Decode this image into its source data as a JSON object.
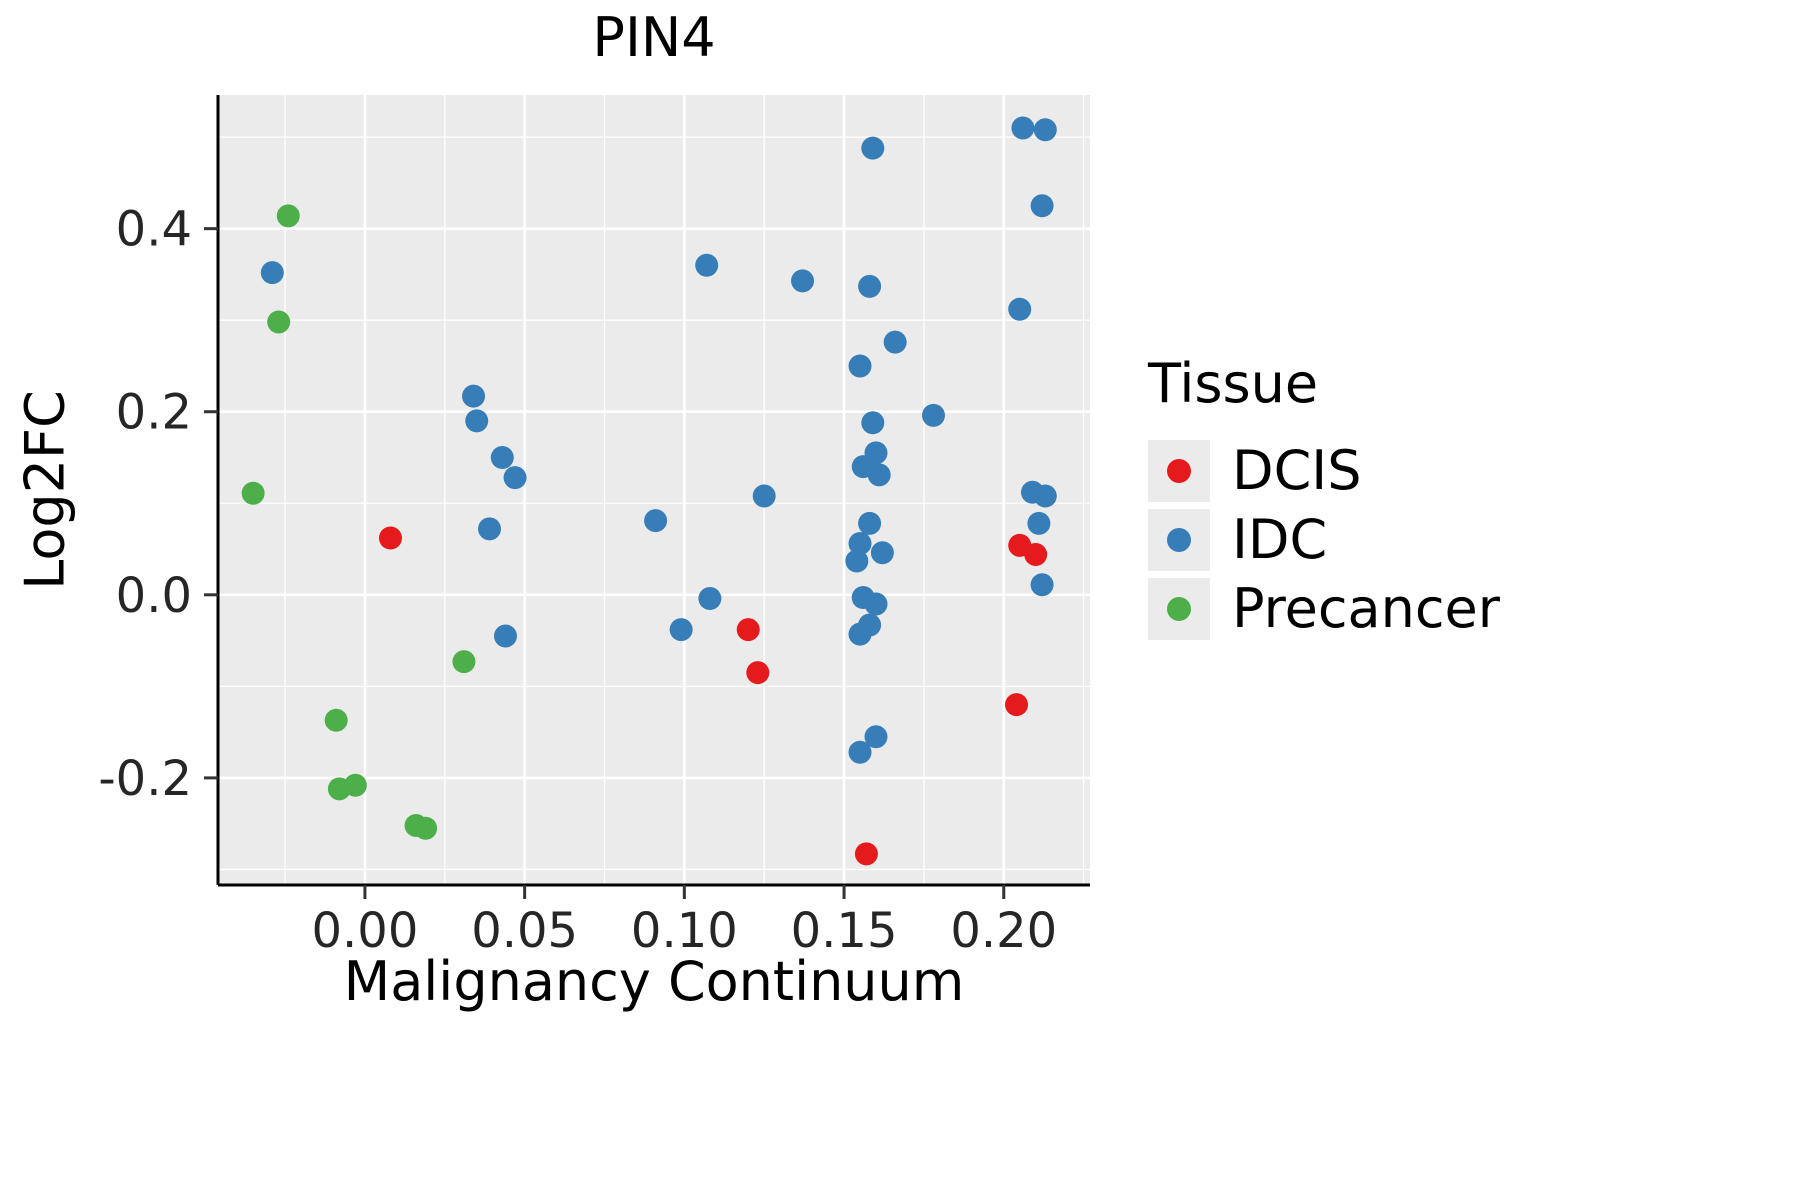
{
  "chart_data": {
    "type": "scatter",
    "title": "PIN4",
    "xlabel": "Malignancy Continuum",
    "ylabel": "Log2FC",
    "xlim": [
      -0.046,
      0.227
    ],
    "ylim": [
      -0.317,
      0.546
    ],
    "x_tick_values": [
      0.0,
      0.05,
      0.1,
      0.15,
      0.2
    ],
    "x_tick_labels": [
      "0.00",
      "0.05",
      "0.10",
      "0.15",
      "0.20"
    ],
    "y_tick_values": [
      -0.2,
      0.0,
      0.2,
      0.4
    ],
    "y_tick_labels": [
      "-0.2",
      "0.0",
      "0.2",
      "0.4"
    ],
    "legend_title": "Tissue",
    "panel_background": "#EBEBEB",
    "grid_color": "#FFFFFF",
    "legend_position": "right",
    "grid": true,
    "series": [
      {
        "name": "DCIS",
        "color": "#E41A1C",
        "points": [
          [
            0.008,
            0.062
          ],
          [
            0.12,
            -0.038
          ],
          [
            0.123,
            -0.085
          ],
          [
            0.157,
            -0.283
          ],
          [
            0.205,
            0.054
          ],
          [
            0.21,
            0.044
          ],
          [
            0.204,
            -0.12
          ]
        ]
      },
      {
        "name": "IDC",
        "color": "#377EB8",
        "points": [
          [
            -0.029,
            0.352
          ],
          [
            0.034,
            0.217
          ],
          [
            0.035,
            0.19
          ],
          [
            0.043,
            0.15
          ],
          [
            0.047,
            0.128
          ],
          [
            0.039,
            0.072
          ],
          [
            0.044,
            -0.045
          ],
          [
            0.091,
            0.081
          ],
          [
            0.107,
            0.36
          ],
          [
            0.108,
            -0.004
          ],
          [
            0.099,
            -0.038
          ],
          [
            0.125,
            0.108
          ],
          [
            0.137,
            0.343
          ],
          [
            0.159,
            0.488
          ],
          [
            0.158,
            0.337
          ],
          [
            0.155,
            0.25
          ],
          [
            0.159,
            0.188
          ],
          [
            0.16,
            0.155
          ],
          [
            0.156,
            0.14
          ],
          [
            0.161,
            0.131
          ],
          [
            0.158,
            0.078
          ],
          [
            0.155,
            0.056
          ],
          [
            0.162,
            0.046
          ],
          [
            0.154,
            0.037
          ],
          [
            0.156,
            -0.003
          ],
          [
            0.16,
            -0.01
          ],
          [
            0.158,
            -0.033
          ],
          [
            0.155,
            -0.043
          ],
          [
            0.16,
            -0.155
          ],
          [
            0.155,
            -0.172
          ],
          [
            0.166,
            0.276
          ],
          [
            0.178,
            0.196
          ],
          [
            0.206,
            0.51
          ],
          [
            0.213,
            0.508
          ],
          [
            0.212,
            0.425
          ],
          [
            0.205,
            0.312
          ],
          [
            0.209,
            0.112
          ],
          [
            0.213,
            0.108
          ],
          [
            0.211,
            0.078
          ],
          [
            0.212,
            0.011
          ]
        ]
      },
      {
        "name": "Precancer",
        "color": "#4DAF4A",
        "points": [
          [
            -0.024,
            0.414
          ],
          [
            -0.027,
            0.298
          ],
          [
            -0.035,
            0.111
          ],
          [
            -0.009,
            -0.137
          ],
          [
            -0.008,
            -0.212
          ],
          [
            -0.003,
            -0.208
          ],
          [
            0.016,
            -0.252
          ],
          [
            0.019,
            -0.255
          ],
          [
            0.031,
            -0.073
          ]
        ]
      }
    ]
  }
}
